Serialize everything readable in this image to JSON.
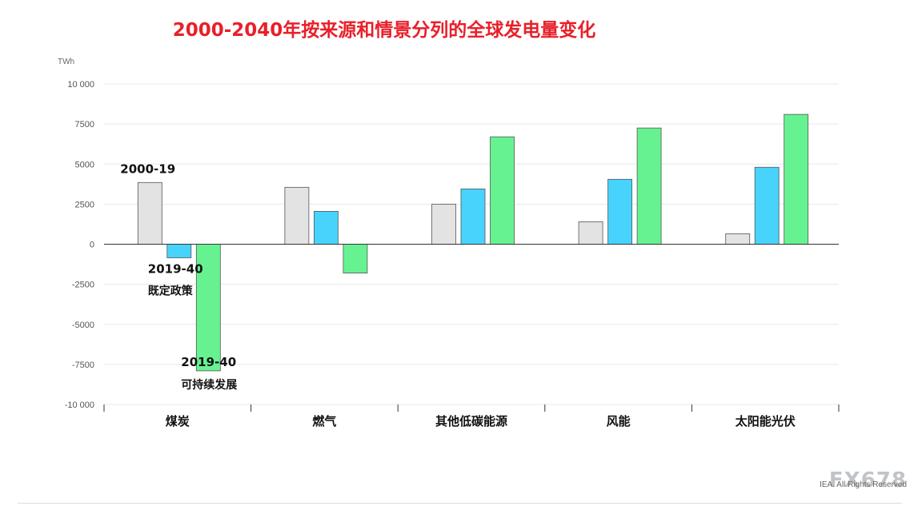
{
  "colors": {
    "title": "#e8202a",
    "historical": "#e3e3e3",
    "stated_policies": "#47d3fb",
    "sustainable": "#66f291",
    "grid": "#e8e8e8",
    "zero_line": "#333333"
  },
  "watermark": "FX678",
  "copyright": "IEA. All Rights Reserved",
  "chart_data": {
    "type": "bar",
    "title": "2000-2040年按来源和情景分列的全球发电量变化",
    "ylabel": "TWh",
    "ylim": [
      -10000,
      10000
    ],
    "yticks": [
      10000,
      7500,
      5000,
      2500,
      0,
      -2500,
      -5000,
      -7500,
      -10000
    ],
    "ytick_labels": [
      "10 000",
      "7500",
      "5000",
      "2500",
      "0",
      "-2500",
      "-5000",
      "-7500",
      "-10 000"
    ],
    "grid": true,
    "categories": [
      "煤炭",
      "燃气",
      "其他低碳能源",
      "风能",
      "太阳能光伏"
    ],
    "series": [
      {
        "name": "2000-19",
        "values": [
          3850,
          3550,
          2500,
          1400,
          650
        ]
      },
      {
        "name": "2019-40 既定政策",
        "values": [
          -850,
          2050,
          3450,
          4050,
          4800
        ]
      },
      {
        "name": "2019-40 可持续发展",
        "values": [
          -7900,
          -1800,
          6700,
          7250,
          8100
        ]
      }
    ],
    "annotations": [
      {
        "line1": "2000-19",
        "line2": ""
      },
      {
        "line1": "2019-40",
        "line2": "既定政策"
      },
      {
        "line1": "2019-40",
        "line2": "可持续发展"
      }
    ]
  }
}
